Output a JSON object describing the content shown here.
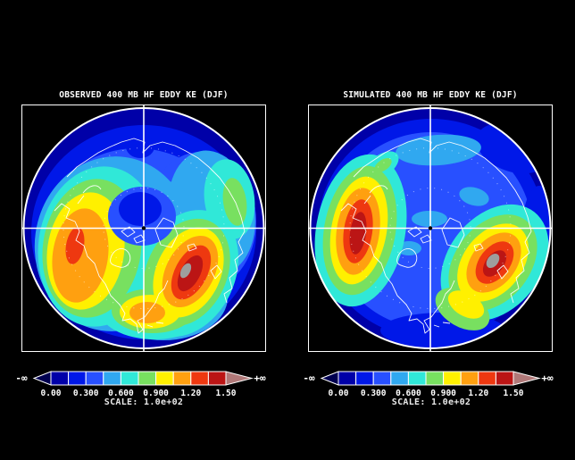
{
  "window": {
    "background": "#000000",
    "frame_color": "#FFFFFF"
  },
  "panels": [
    {
      "id": "observed",
      "title": "OBSERVED 400 MB HF EDDY KE (DJF)"
    },
    {
      "id": "simulated",
      "title": "SIMULATED 400 MB HF EDDY KE (DJF)"
    }
  ],
  "colorbar": {
    "neg_label": "-∞",
    "pos_label": "+∞",
    "tick_labels": [
      "0.00",
      "0.300",
      "0.600",
      "0.900",
      "1.20",
      "1.50"
    ],
    "scale_label": "SCALE: 1.0e+02",
    "colors": [
      "#0000A8",
      "#0018E8",
      "#2850FF",
      "#30A8F0",
      "#30E8D8",
      "#78E060",
      "#FFF000",
      "#FFA010",
      "#EE3810",
      "#BB1515"
    ],
    "neg_color": "#000050",
    "pos_color": "#B07878",
    "over_gray": "#9E9E9E"
  },
  "chart_data": {
    "type": "heatmap",
    "subtype": "filled-contour map pair, north polar stereographic, crosshair graticule, white coastlines",
    "scale_factor": "1.0e+02",
    "levels": [
      0.0,
      0.15,
      0.3,
      0.45,
      0.6,
      0.75,
      0.9,
      1.05,
      1.2,
      1.35,
      1.5
    ],
    "level_tick_labels": [
      "0.00",
      "0.300",
      "0.600",
      "0.900",
      "1.20",
      "1.50"
    ],
    "under_range_label": "-∞",
    "over_range_label": "+∞",
    "legend_position": "horizontal colorbar below each map",
    "maps": [
      {
        "title": "OBSERVED 400 MB HF EDDY KE (DJF)",
        "maxima": [
          {
            "name": "North Pacific storm track",
            "approx_peak": "1.35-1.50 (x1.0e+02)",
            "center_frac_xy": [
              0.22,
              0.57
            ]
          },
          {
            "name": "North Atlantic storm track",
            "approx_peak": "over 1.50 (gray over-scale core)",
            "center_frac_xy": [
              0.69,
              0.68
            ]
          }
        ],
        "minima": "polar cap and outer subtropical rim below 0.30 (x1.0e+02)",
        "notes": "broad cyan-green-yellow band along both storm tracks; secondary orange patch at bottom center"
      },
      {
        "title": "SIMULATED 400 MB HF EDDY KE (DJF)",
        "maxima": [
          {
            "name": "North Pacific storm track",
            "approx_peak": "1.35-1.50 (x1.0e+02), compact elongated core",
            "center_frac_xy": [
              0.2,
              0.51
            ]
          },
          {
            "name": "North Atlantic storm track",
            "approx_peak": "over 1.50 (gray over-scale core)",
            "center_frac_xy": [
              0.76,
              0.64
            ]
          }
        ],
        "minima": "most of domain below 0.60 (x1.0e+02); weaker/narrower storm tracks than observed",
        "notes": "light blue patches near pole and top center; yellow tail extending to bottom center"
      }
    ]
  }
}
